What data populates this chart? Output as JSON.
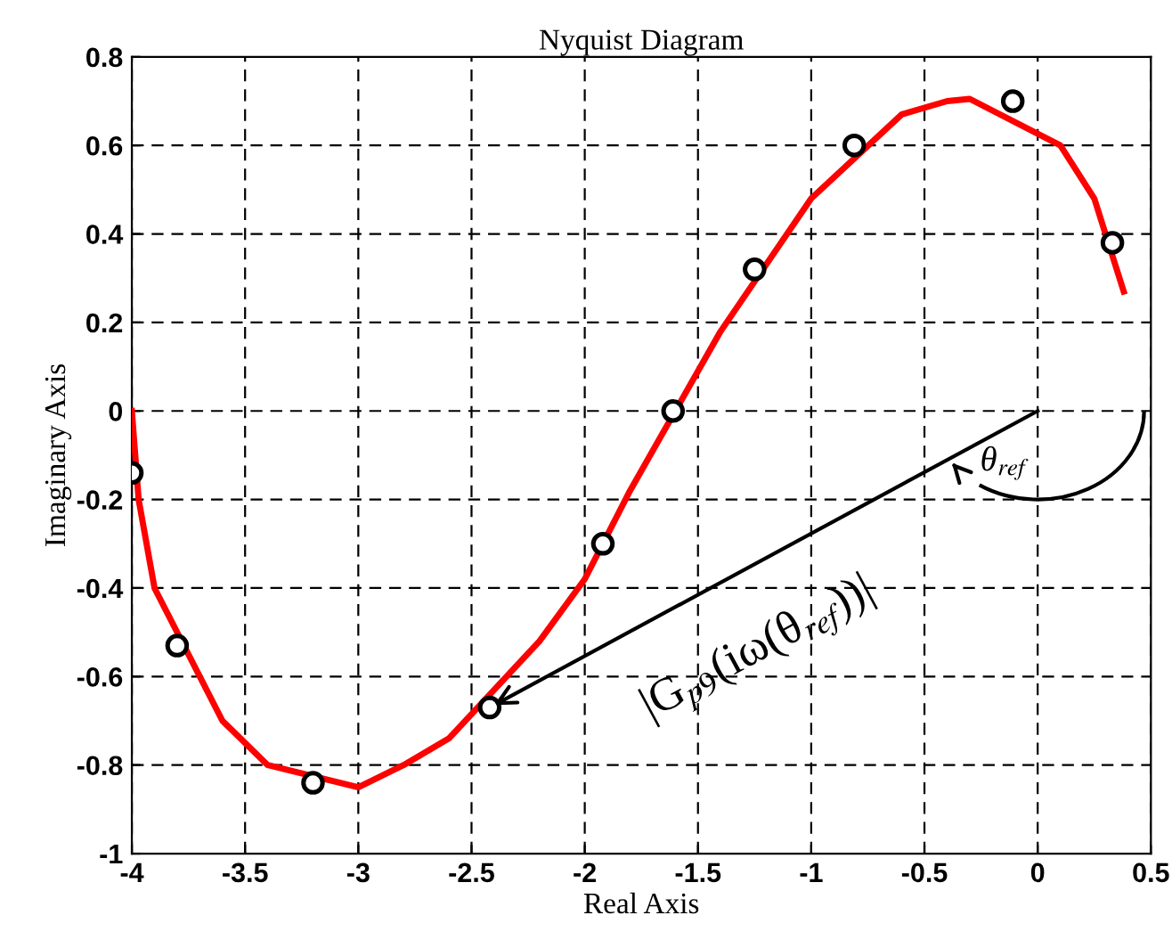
{
  "chart_data": {
    "type": "line",
    "title": "Nyquist Diagram",
    "xlabel": "Real Axis",
    "ylabel": "Imaginary Axis",
    "series": [
      {
        "color": "#ff0000",
        "x": [
          -4,
          -3.97,
          -3.9,
          -3.6,
          -3.4,
          -3.0,
          -2.8,
          -2.6,
          -2.2,
          -2.0,
          -1.8,
          -1.4,
          -1.0,
          -0.6,
          -0.4,
          -0.3,
          0.1,
          0.25,
          0.38
        ],
        "values": [
          0,
          -0.2,
          -0.4,
          -0.7,
          -0.8,
          -0.85,
          -0.8,
          -0.74,
          -0.52,
          -0.38,
          -0.18,
          0.18,
          0.48,
          0.67,
          0.7,
          0.705,
          0.6,
          0.48,
          0.27
        ]
      },
      {
        "type": "line",
        "color": "#000000",
        "x": [
          0,
          -2.42
        ],
        "values": [
          0,
          -0.67
        ]
      },
      {
        "type": "scatter",
        "color": "#000000",
        "marker": "circle",
        "x": [
          -4,
          -3.8,
          -3.2,
          -2.42,
          -1.92,
          -1.61,
          -1.25,
          -0.81,
          -0.11,
          0.33
        ],
        "values": [
          -0.14,
          -0.53,
          -0.84,
          -0.67,
          -0.3,
          0,
          0.32,
          0.6,
          0.7,
          0.38
        ]
      }
    ],
    "xlim": [
      -4,
      0.5
    ],
    "xticks": [
      -4,
      -3.5,
      -3,
      -2.5,
      -2,
      -1.5,
      -1,
      -0.5,
      0,
      0.5
    ],
    "ylim": [
      -1,
      0.8
    ],
    "yticks": [
      -1,
      -0.8,
      -0.6,
      -0.4,
      -0.2,
      0,
      0.2,
      0.4,
      0.6,
      0.8
    ],
    "grid": true,
    "annotations": [
      "θ$_{ref}$",
      "|G$_{p9}$(iω(θ$_{ref}$))|"
    ]
  }
}
